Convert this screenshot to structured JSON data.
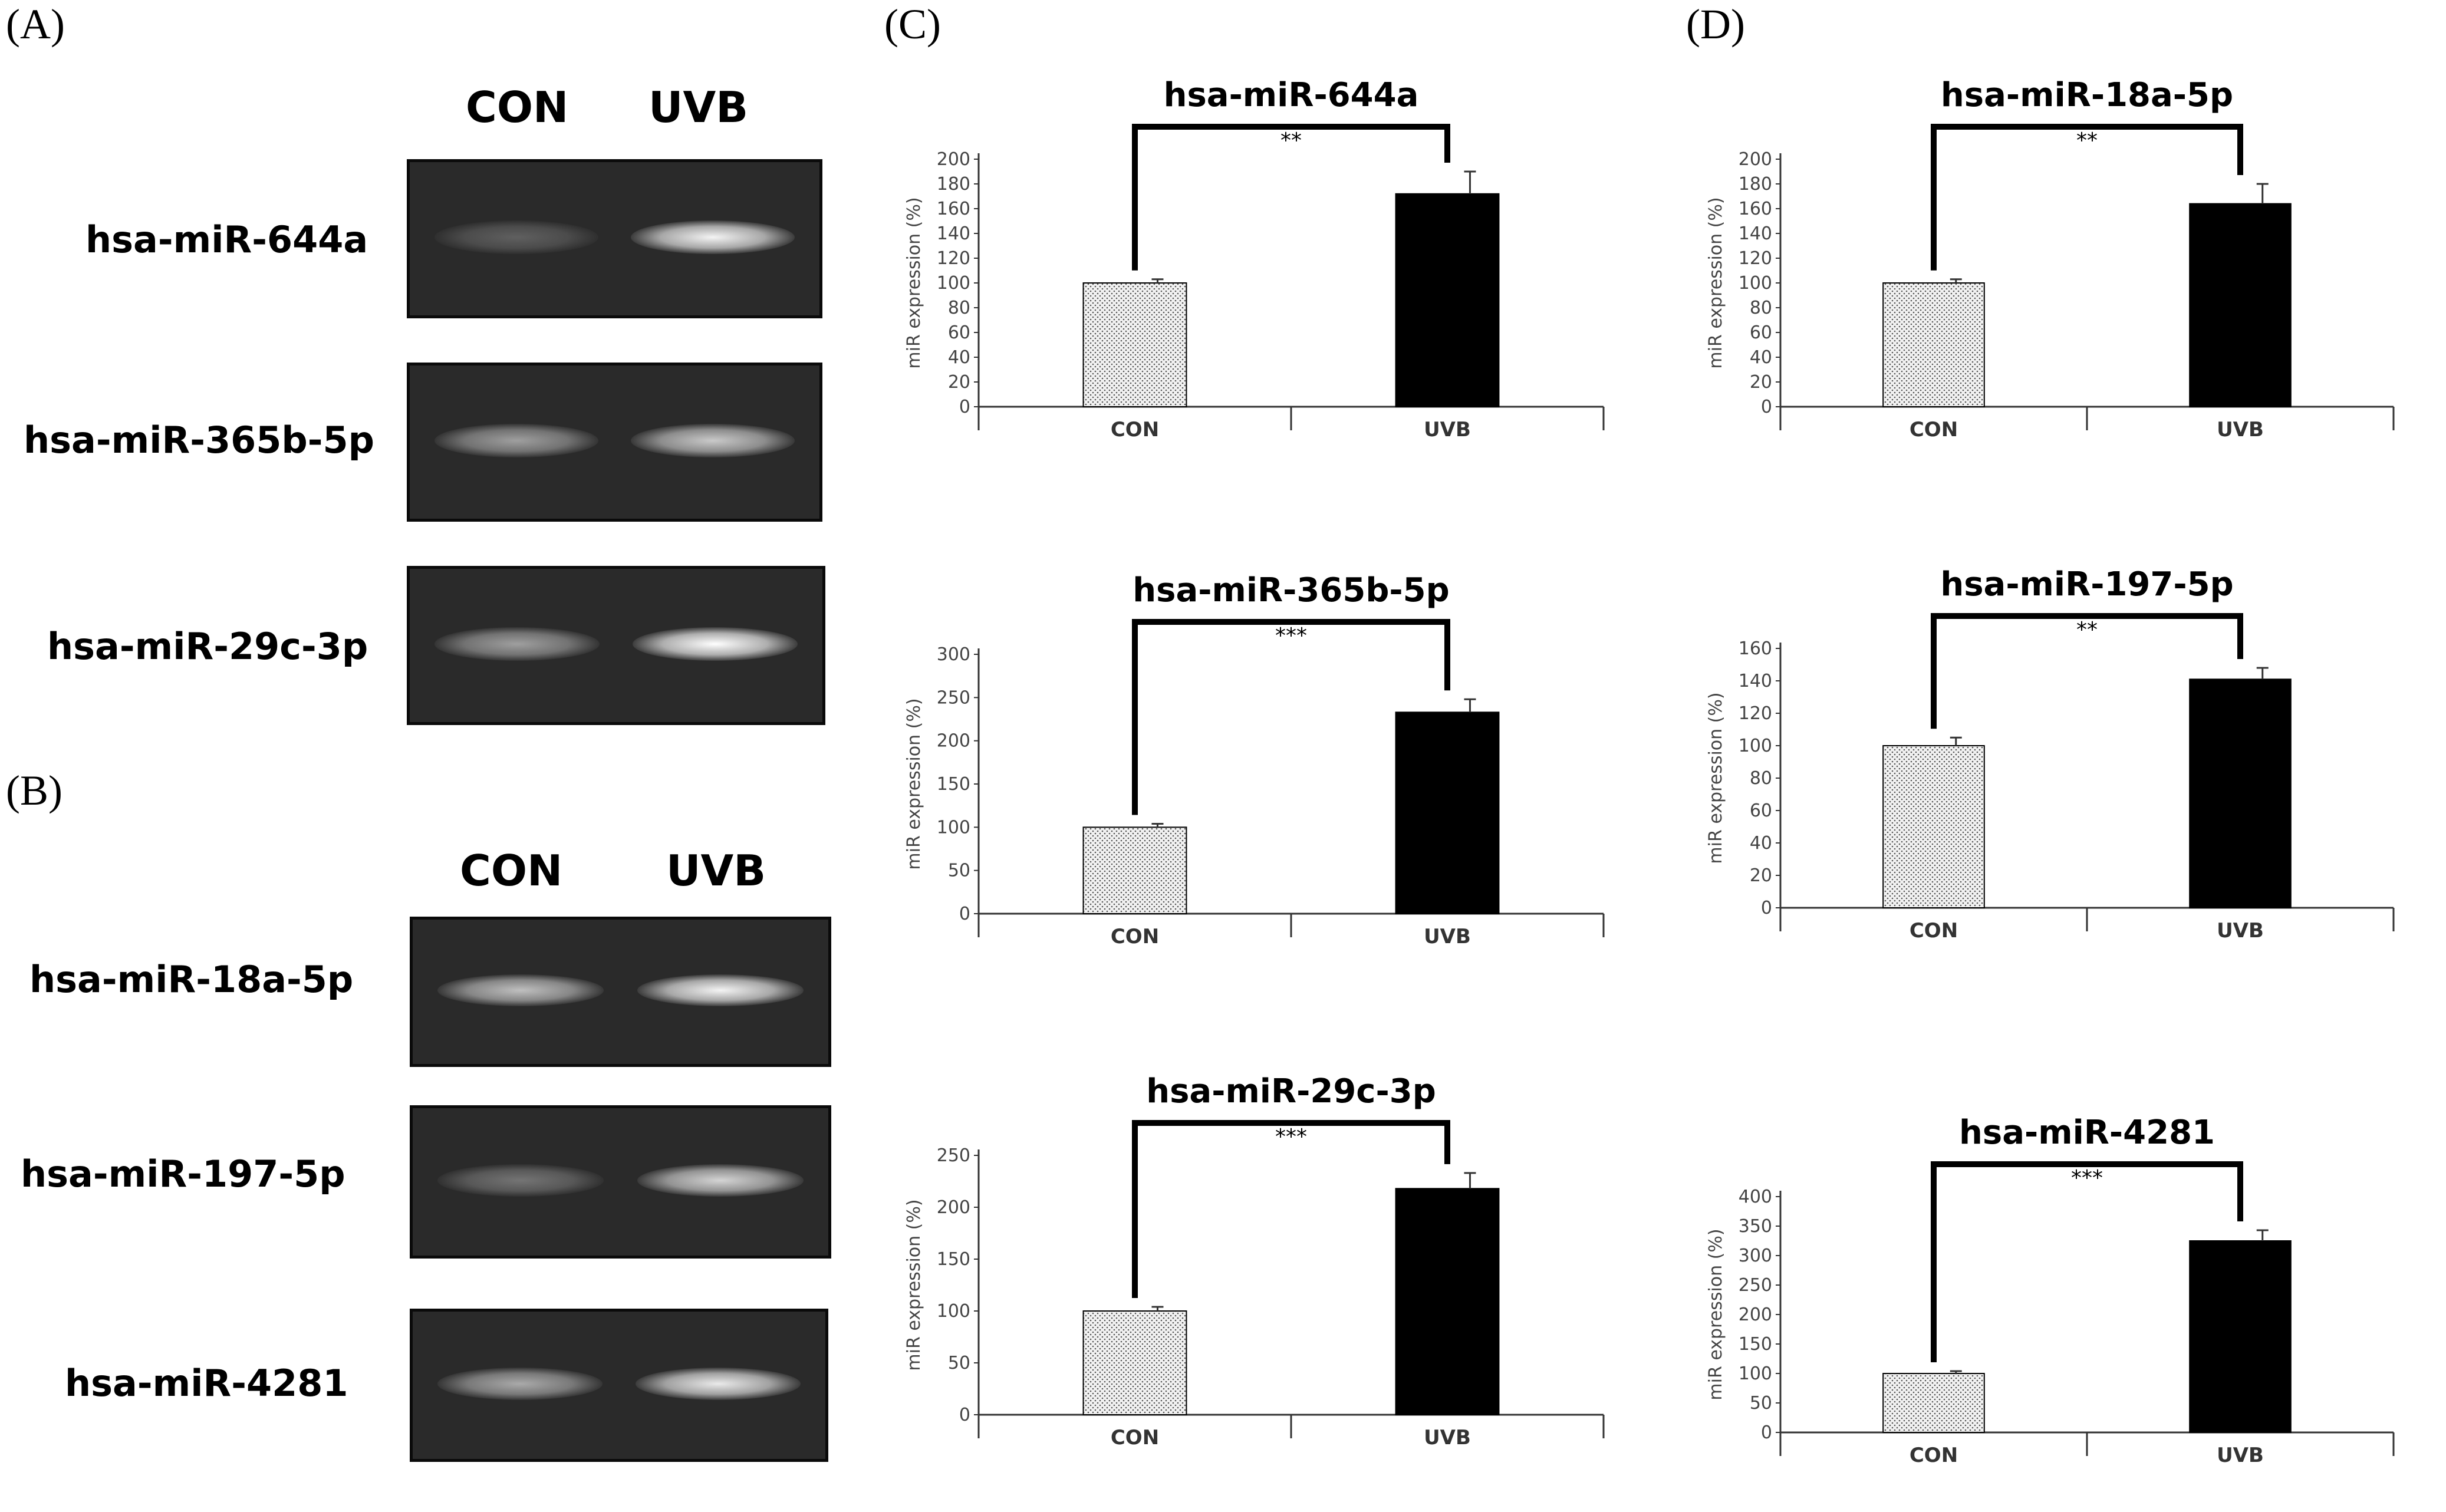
{
  "panels": {
    "A": "(A)",
    "B": "(B)",
    "C": "(C)",
    "D": "(D)"
  },
  "gels": {
    "A": {
      "columns": [
        "CON",
        "UVB"
      ],
      "rows": [
        {
          "label": "hsa-miR-644a",
          "con": 0.25,
          "uvb": 0.95
        },
        {
          "label": "hsa-miR-365b-5p",
          "con": 0.55,
          "uvb": 0.75
        },
        {
          "label": "hsa-miR-29c-3p",
          "con": 0.55,
          "uvb": 1.0
        }
      ]
    },
    "B": {
      "columns": [
        "CON",
        "UVB"
      ],
      "rows": [
        {
          "label": "hsa-miR-18a-5p",
          "con": 0.7,
          "uvb": 0.95
        },
        {
          "label": "hsa-miR-197-5p",
          "con": 0.35,
          "uvb": 0.8
        },
        {
          "label": "hsa-miR-4281",
          "con": 0.6,
          "uvb": 0.9
        }
      ]
    }
  },
  "chart_data": [
    {
      "type": "bar",
      "title": "hsa-miR-644a",
      "categories": [
        "CON",
        "UVB"
      ],
      "values": [
        100,
        172
      ],
      "errors": [
        3,
        18
      ],
      "ylabel": "miR expression (%)",
      "ylim": [
        0,
        200
      ],
      "yticks": [
        0,
        20,
        40,
        60,
        80,
        100,
        120,
        140,
        160,
        180,
        200
      ],
      "significance": "**",
      "fills": [
        "dotted",
        "black"
      ]
    },
    {
      "type": "bar",
      "title": "hsa-miR-365b-5p",
      "categories": [
        "CON",
        "UVB"
      ],
      "values": [
        100,
        233
      ],
      "errors": [
        4,
        15
      ],
      "ylabel": "miR expression (%)",
      "ylim": [
        0,
        300
      ],
      "yticks": [
        0,
        50,
        100,
        150,
        200,
        250,
        300
      ],
      "significance": "***",
      "fills": [
        "dotted",
        "black"
      ]
    },
    {
      "type": "bar",
      "title": "hsa-miR-29c-3p",
      "categories": [
        "CON",
        "UVB"
      ],
      "values": [
        100,
        218
      ],
      "errors": [
        4,
        15
      ],
      "ylabel": "miR expression (%)",
      "ylim": [
        0,
        250
      ],
      "yticks": [
        0,
        50,
        100,
        150,
        200,
        250
      ],
      "significance": "***",
      "fills": [
        "dotted",
        "black"
      ]
    },
    {
      "type": "bar",
      "title": "hsa-miR-18a-5p",
      "categories": [
        "CON",
        "UVB"
      ],
      "values": [
        100,
        164
      ],
      "errors": [
        3,
        16
      ],
      "ylabel": "miR expression (%)",
      "ylim": [
        0,
        200
      ],
      "yticks": [
        0,
        20,
        40,
        60,
        80,
        100,
        120,
        140,
        160,
        180,
        200
      ],
      "significance": "**",
      "fills": [
        "dotted",
        "black"
      ]
    },
    {
      "type": "bar",
      "title": "hsa-miR-197-5p",
      "categories": [
        "CON",
        "UVB"
      ],
      "values": [
        100,
        141
      ],
      "errors": [
        5,
        7
      ],
      "ylabel": "miR expression (%)",
      "ylim": [
        0,
        160
      ],
      "yticks": [
        0,
        20,
        40,
        60,
        80,
        100,
        120,
        140,
        160
      ],
      "significance": "**",
      "fills": [
        "dotted",
        "black"
      ]
    },
    {
      "type": "bar",
      "title": "hsa-miR-4281",
      "categories": [
        "CON",
        "UVB"
      ],
      "values": [
        100,
        325
      ],
      "errors": [
        4,
        18
      ],
      "ylabel": "miR expression (%)",
      "ylim": [
        0,
        400
      ],
      "yticks": [
        0,
        50,
        100,
        150,
        200,
        250,
        300,
        350,
        400
      ],
      "significance": "***",
      "fills": [
        "dotted",
        "black"
      ]
    }
  ]
}
